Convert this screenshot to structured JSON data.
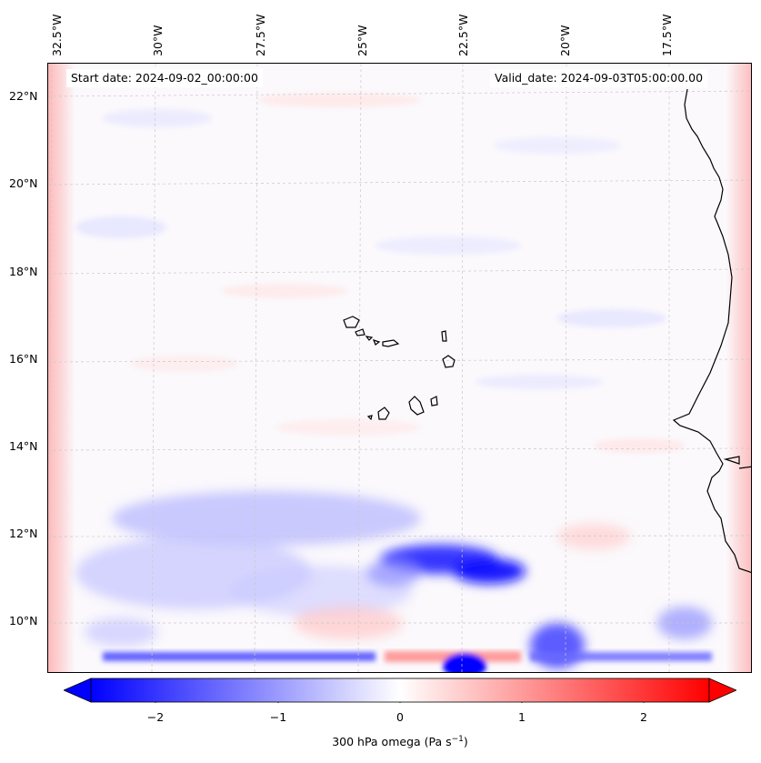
{
  "header": {
    "start_date": "Start date: 2024-09-02_00:00:00",
    "valid_date": "Valid_date: 2024-09-03T05:00:00.00"
  },
  "map": {
    "projection_note": "lat/lon map of eastern tropical Atlantic and West African coast",
    "longitude_labels": [
      "32.5°W",
      "30°W",
      "27.5°W",
      "25°W",
      "22.5°W",
      "20°W",
      "17.5°W"
    ],
    "latitude_labels": [
      "22°N",
      "20°N",
      "18°N",
      "16°N",
      "14°N",
      "12°N",
      "10°N"
    ],
    "gridlines": true,
    "coastline_color": "#000000"
  },
  "colorbar": {
    "label": "300 hPa omega (Pa s",
    "label_sup": "−1",
    "label_close": ")",
    "ticks": [
      "−2",
      "−1",
      "0",
      "1",
      "2"
    ],
    "tick_values": [
      -2,
      -1,
      0,
      1,
      2
    ],
    "range": [
      -2.5,
      2.5
    ],
    "colormap": "bwr",
    "extend": "both",
    "colors": {
      "negative": "#0000ff",
      "zero": "#ffffff",
      "positive": "#ff0000"
    }
  }
}
